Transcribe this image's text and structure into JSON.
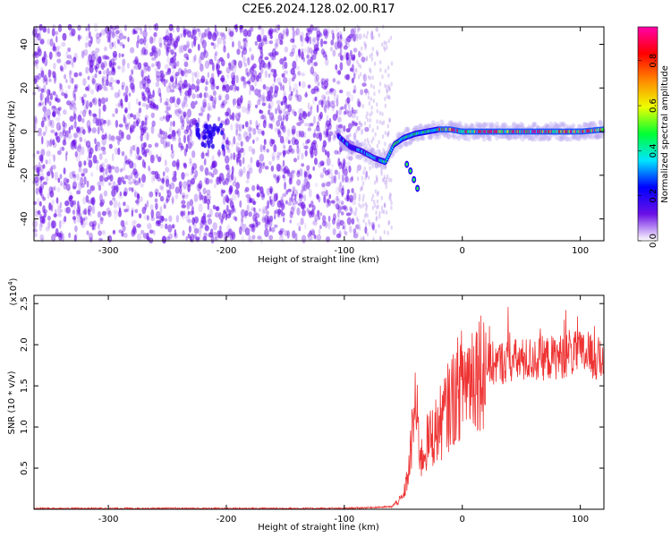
{
  "figure_title": "C2E6.2024.128.02.00.R17",
  "colors": {
    "snr_line": "#ee3333",
    "scatter_base": "#6a10e6",
    "background": "#ffffff"
  },
  "chart_data": [
    {
      "type": "heatmap",
      "title": "",
      "xlabel": "Height of straight line (km)",
      "ylabel": "Frequency (Hz)",
      "xlim": [
        -363,
        120
      ],
      "ylim": [
        -50,
        48
      ],
      "xticks": [
        -300,
        -200,
        -100,
        0,
        100
      ],
      "yticks": [
        -40,
        -20,
        0,
        20,
        40
      ],
      "grid": false,
      "colorbar": {
        "label": "Normalized spectral amplitude",
        "range": [
          0.0,
          0.95
        ],
        "ticks": [
          "0.0",
          "0.2",
          "0.4",
          "0.6",
          "0.8"
        ],
        "colormap": [
          "#ffffff",
          "#6a10e6",
          "#0000ff",
          "#00e5ff",
          "#00ff33",
          "#eeff00",
          "#ff8800",
          "#ff0000",
          "#ff00aa"
        ]
      },
      "signal_track": {
        "description_points_x": [
          -105,
          -95,
          -85,
          -75,
          -65,
          -58,
          -50,
          -40,
          -30,
          -20,
          -10,
          0,
          20,
          40,
          60,
          80,
          100,
          120
        ],
        "description_points_y": [
          -2,
          -7,
          -9,
          -12,
          -14,
          -6,
          -3,
          -1,
          0,
          1,
          1,
          0,
          0,
          0,
          0,
          0,
          0,
          1
        ],
        "branch_x": [
          -47,
          -44,
          -41,
          -38
        ],
        "branch_y": [
          -15,
          -18,
          -22,
          -26
        ]
      }
    },
    {
      "type": "line",
      "title": "",
      "xlabel": "Height of straight line (km)",
      "ylabel": "SNR (10 * v/v)",
      "y_multiplier": "(x10^4)",
      "xlim": [
        -363,
        120
      ],
      "ylim": [
        0,
        2.6
      ],
      "xticks": [
        -300,
        -200,
        -100,
        0,
        100
      ],
      "yticks": [
        0.5,
        1.0,
        1.5,
        2.0,
        2.5
      ],
      "grid": false,
      "series": [
        {
          "x": [
            -363,
            -300,
            -200,
            -100,
            -60,
            -50,
            -45,
            -40,
            -35,
            -30,
            -25,
            -20,
            -10,
            0,
            10,
            20,
            30,
            40,
            60,
            80,
            100,
            120
          ],
          "y": [
            0.01,
            0.01,
            0.01,
            0.01,
            0.03,
            0.15,
            0.5,
            1.3,
            0.6,
            0.8,
            0.9,
            1.0,
            1.3,
            1.55,
            1.7,
            1.75,
            1.78,
            1.8,
            1.82,
            1.85,
            1.9,
            1.8
          ]
        }
      ]
    }
  ]
}
